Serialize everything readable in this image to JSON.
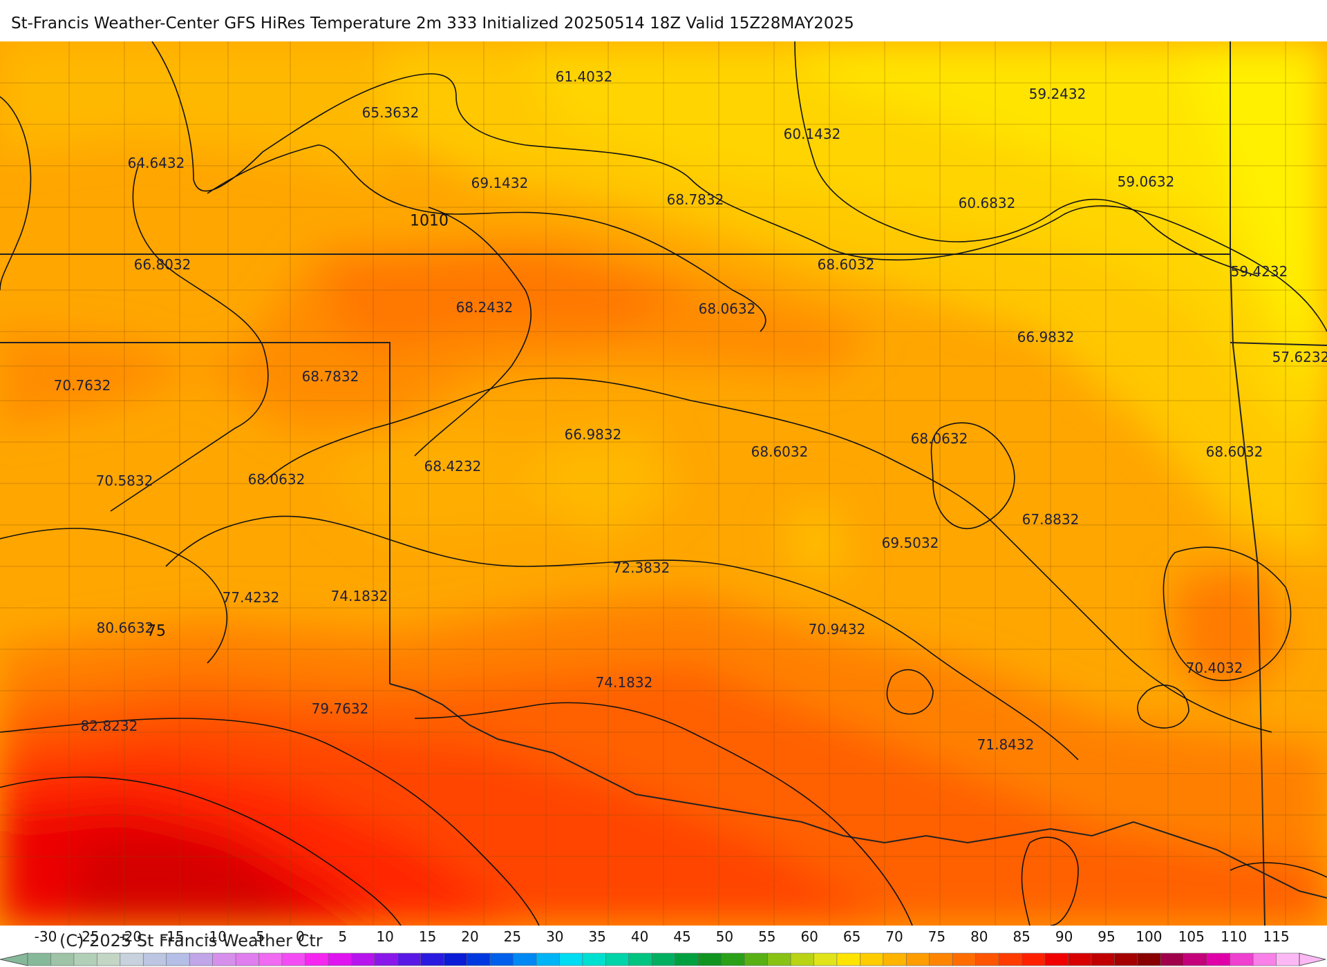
{
  "title": "St-Francis Weather-Center GFS HiRes Temperature 2m  333 Initialized 20250514 18Z Valid 15Z28MAY2025",
  "copyright": "(C) 2025 St Francis Weather Ctr",
  "point_values": [
    {
      "text": "61.4032"
    },
    {
      "text": "59.2432"
    },
    {
      "text": "65.3632"
    },
    {
      "text": "60.1432"
    },
    {
      "text": "64.6432"
    },
    {
      "text": "69.1432"
    },
    {
      "text": "59.0632"
    },
    {
      "text": "68.7832"
    },
    {
      "text": "60.6832"
    },
    {
      "text": "66.8032"
    },
    {
      "text": "68.6032"
    },
    {
      "text": "59.4232"
    },
    {
      "text": "68.2432"
    },
    {
      "text": "68.0632"
    },
    {
      "text": "66.9832"
    },
    {
      "text": "57.6232"
    },
    {
      "text": "70.7632"
    },
    {
      "text": "68.7832"
    },
    {
      "text": "66.9832"
    },
    {
      "text": "68.0632"
    },
    {
      "text": "68.6032"
    },
    {
      "text": "68.6032"
    },
    {
      "text": "68.4232"
    },
    {
      "text": "70.5832"
    },
    {
      "text": "68.0632"
    },
    {
      "text": "67.8832"
    },
    {
      "text": "69.5032"
    },
    {
      "text": "72.3832"
    },
    {
      "text": "77.4232"
    },
    {
      "text": "74.1832"
    },
    {
      "text": "80.6632"
    },
    {
      "text": "70.9432"
    },
    {
      "text": "70.4032"
    },
    {
      "text": "74.1832"
    },
    {
      "text": "79.7632"
    },
    {
      "text": "82.8232"
    },
    {
      "text": "71.8432"
    }
  ],
  "contour_labels": [
    {
      "text": "1010"
    },
    {
      "text": "75"
    }
  ],
  "scale": {
    "ticks": [
      "-30",
      "-25",
      "-20",
      "-15",
      "-10",
      "-5",
      "0",
      "5",
      "10",
      "15",
      "20",
      "25",
      "30",
      "35",
      "40",
      "45",
      "50",
      "55",
      "60",
      "65",
      "70",
      "75",
      "80",
      "85",
      "90",
      "95",
      "100",
      "105",
      "110",
      "115"
    ],
    "colors": [
      "#86b89a",
      "#9ec3a6",
      "#b2cfb8",
      "#c3d6c6",
      "#c7d2de",
      "#bcc6e2",
      "#b4bee6",
      "#c1a6ea",
      "#d690ec",
      "#e07ef0",
      "#f06af2",
      "#f44cf5",
      "#f426f0",
      "#e014f0",
      "#b714ee",
      "#8a18ea",
      "#5a18e6",
      "#2a1ae0",
      "#0a1cd6",
      "#0038e0",
      "#0060ec",
      "#0088f4",
      "#00b4f6",
      "#00dcf2",
      "#00e0d0",
      "#00d4a8",
      "#00c480",
      "#00b060",
      "#00a040",
      "#109420",
      "#2aa018",
      "#58b014",
      "#88c214",
      "#b8d414",
      "#e0e418",
      "#ffe400",
      "#ffcc00",
      "#ffb400",
      "#ff9c00",
      "#ff8400",
      "#ff6c00",
      "#ff5400",
      "#ff3c00",
      "#ff2000",
      "#f00000",
      "#d80000",
      "#c00000",
      "#a40000",
      "#880000",
      "#a0004a",
      "#c4007a",
      "#e000a8",
      "#f040d0",
      "#f880e8",
      "#fcb8f4"
    ]
  }
}
